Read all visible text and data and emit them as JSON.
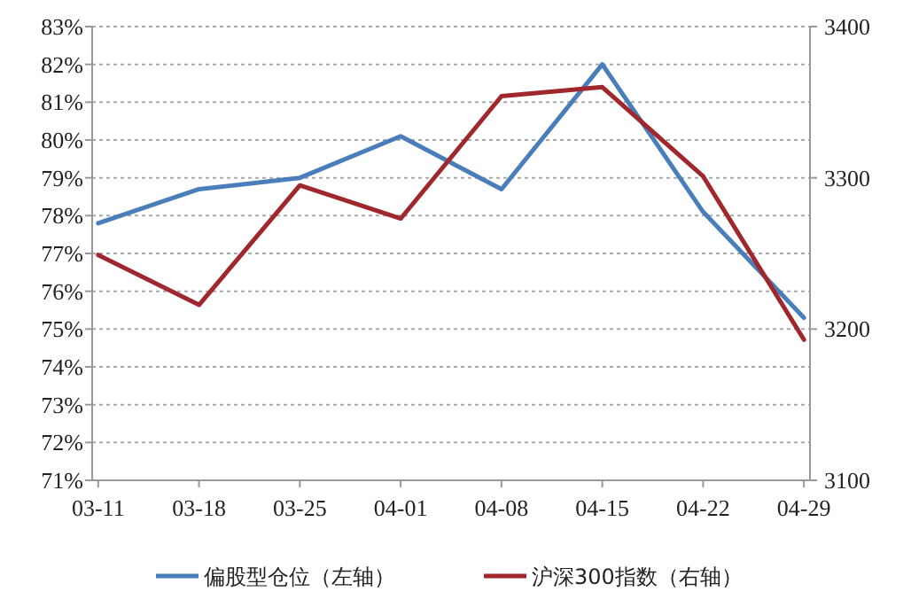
{
  "chart_data": {
    "type": "line",
    "categories": [
      "03-11",
      "03-18",
      "03-25",
      "04-01",
      "04-08",
      "04-15",
      "04-22",
      "04-29"
    ],
    "series": [
      {
        "name": "偏股型仓位（左轴）",
        "color": "#4a7ebb",
        "values": [
          77.8,
          78.7,
          79.0,
          80.1,
          78.7,
          82.0,
          78.1,
          75.3
        ]
      },
      {
        "name": "沪深300指数（右轴）",
        "color": "#a0282d",
        "axis": "y2",
        "values": [
          3249,
          3216,
          3295,
          3273,
          3354,
          3360,
          3301,
          3193
        ]
      }
    ],
    "ylim": [
      71,
      83
    ],
    "yticks": [
      {
        "value": 71,
        "label": "71%"
      },
      {
        "value": 72,
        "label": "72%"
      },
      {
        "value": 73,
        "label": "73%"
      },
      {
        "value": 74,
        "label": "74%"
      },
      {
        "value": 75,
        "label": "75%"
      },
      {
        "value": 76,
        "label": "76%"
      },
      {
        "value": 77,
        "label": "77%"
      },
      {
        "value": 78,
        "label": "78%"
      },
      {
        "value": 79,
        "label": "79%"
      },
      {
        "value": 80,
        "label": "80%"
      },
      {
        "value": 81,
        "label": "81%"
      },
      {
        "value": 82,
        "label": "82%"
      },
      {
        "value": 83,
        "label": "83%"
      }
    ],
    "y2lim": [
      3100,
      3400
    ],
    "y2ticks": [
      3100,
      3200,
      3300,
      3400
    ],
    "grid": "y",
    "legend": "bottom"
  }
}
